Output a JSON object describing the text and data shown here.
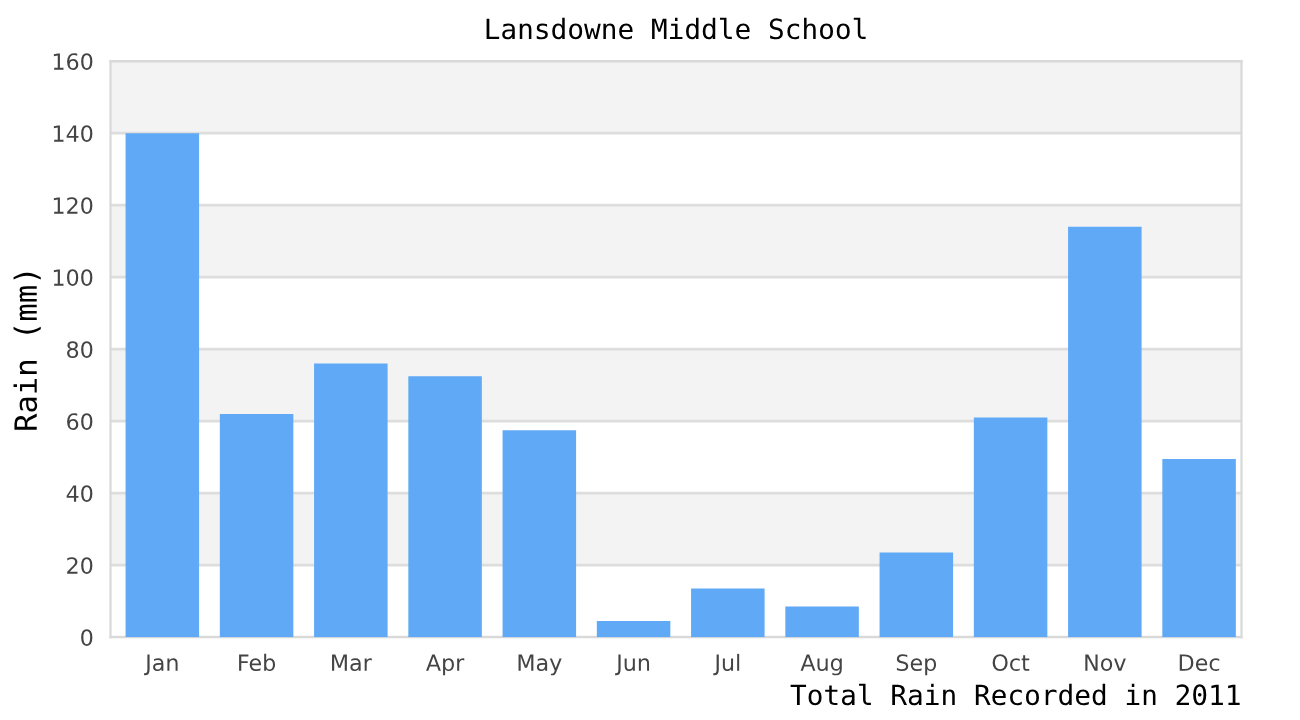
{
  "chart_data": {
    "type": "bar",
    "title": "Lansdowne Middle School",
    "xlabel": "Total Rain Recorded in 2011",
    "ylabel": "Rain (mm)",
    "categories": [
      "Jan",
      "Feb",
      "Mar",
      "Apr",
      "May",
      "Jun",
      "Jul",
      "Aug",
      "Sep",
      "Oct",
      "Nov",
      "Dec"
    ],
    "values": [
      140,
      62,
      76,
      72.5,
      57.5,
      4.5,
      13.5,
      8.5,
      23.5,
      61,
      114,
      49.5
    ],
    "color": "#60a9f6",
    "ylim": [
      0,
      160
    ],
    "yticks": [
      0,
      20,
      40,
      60,
      80,
      100,
      120,
      140,
      160
    ],
    "grid": "y",
    "bands": [
      {
        "axis": "y",
        "from": 20,
        "to": 40,
        "color": "#f3f3f3"
      },
      {
        "axis": "y",
        "from": 60,
        "to": 80,
        "color": "#f3f3f3"
      },
      {
        "axis": "y",
        "from": 100,
        "to": 120,
        "color": "#f3f3f3"
      },
      {
        "axis": "y",
        "from": 140,
        "to": 160,
        "color": "#f3f3f3"
      }
    ]
  }
}
